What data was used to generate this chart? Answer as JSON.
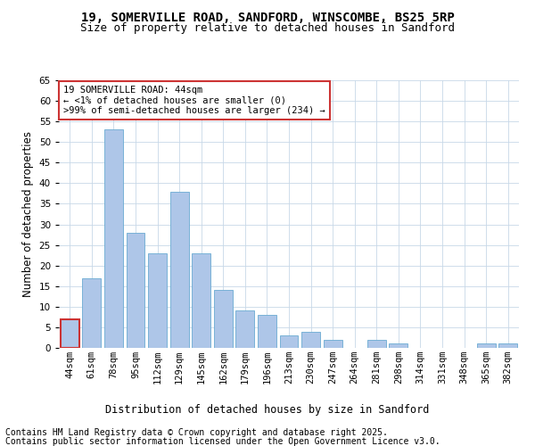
{
  "title1": "19, SOMERVILLE ROAD, SANDFORD, WINSCOMBE, BS25 5RP",
  "title2": "Size of property relative to detached houses in Sandford",
  "xlabel": "Distribution of detached houses by size in Sandford",
  "ylabel": "Number of detached properties",
  "categories": [
    "44sqm",
    "61sqm",
    "78sqm",
    "95sqm",
    "112sqm",
    "129sqm",
    "145sqm",
    "162sqm",
    "179sqm",
    "196sqm",
    "213sqm",
    "230sqm",
    "247sqm",
    "264sqm",
    "281sqm",
    "298sqm",
    "314sqm",
    "331sqm",
    "348sqm",
    "365sqm",
    "382sqm"
  ],
  "values": [
    7,
    17,
    53,
    28,
    23,
    38,
    23,
    14,
    9,
    8,
    3,
    4,
    2,
    0,
    2,
    1,
    0,
    0,
    0,
    1,
    1
  ],
  "bar_color": "#aec6e8",
  "bar_edge_color": "#6aabd2",
  "highlight_bar_color": "#c8d8ea",
  "highlight_bar_edge_color": "#cc3333",
  "highlight_index": 0,
  "annotation_text": "19 SOMERVILLE ROAD: 44sqm\n← <1% of detached houses are smaller (0)\n>99% of semi-detached houses are larger (234) →",
  "annotation_box_color": "#ffffff",
  "annotation_box_edge_color": "#cc3333",
  "footnote1": "Contains HM Land Registry data © Crown copyright and database right 2025.",
  "footnote2": "Contains public sector information licensed under the Open Government Licence v3.0.",
  "ylim": [
    0,
    65
  ],
  "yticks": [
    0,
    5,
    10,
    15,
    20,
    25,
    30,
    35,
    40,
    45,
    50,
    55,
    60,
    65
  ],
  "background_color": "#ffffff",
  "grid_color": "#c8d8e8",
  "title_fontsize": 10,
  "subtitle_fontsize": 9,
  "axis_label_fontsize": 8.5,
  "tick_fontsize": 7.5,
  "annotation_fontsize": 7.5,
  "footnote_fontsize": 7
}
